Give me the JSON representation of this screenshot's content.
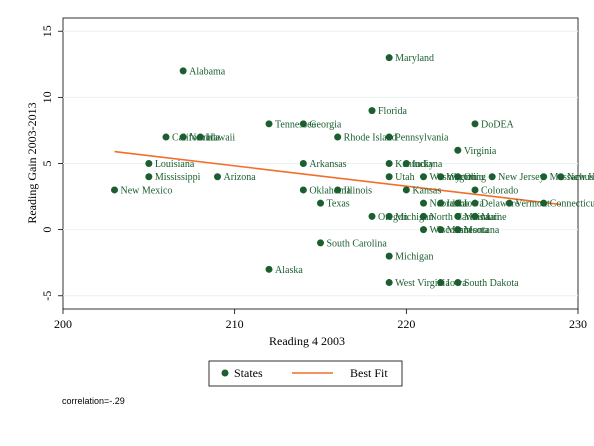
{
  "chart_data": {
    "type": "scatter",
    "xlabel": "Reading 4 2003",
    "ylabel": "Reading Gain 2003-2013",
    "xlim": [
      200,
      230
    ],
    "ylim": [
      -6,
      16
    ],
    "xticks": [
      200,
      210,
      220,
      230
    ],
    "yticks": [
      -5,
      0,
      5,
      10,
      15
    ],
    "grid": true,
    "legend_position": "bottom",
    "colors": {
      "points": "#1b5e2f",
      "fit": "#f26d2b"
    },
    "series": [
      {
        "name": "States",
        "points": [
          {
            "label": "Alabama",
            "x": 207,
            "y": 12
          },
          {
            "label": "Maryland",
            "x": 219,
            "y": 13
          },
          {
            "label": "Florida",
            "x": 218,
            "y": 9
          },
          {
            "label": "DoDEA",
            "x": 224,
            "y": 8
          },
          {
            "label": "Tennessee",
            "x": 212,
            "y": 8
          },
          {
            "label": "Georgia",
            "x": 214,
            "y": 8
          },
          {
            "label": "California",
            "x": 206,
            "y": 7
          },
          {
            "label": "Nevada",
            "x": 207,
            "y": 7
          },
          {
            "label": "Hawaii",
            "x": 208,
            "y": 7
          },
          {
            "label": "Rhode Island",
            "x": 216,
            "y": 7
          },
          {
            "label": "Pennsylvania",
            "x": 219,
            "y": 7
          },
          {
            "label": "Virginia",
            "x": 223,
            "y": 6
          },
          {
            "label": "Louisiana",
            "x": 205,
            "y": 5
          },
          {
            "label": "Arkansas",
            "x": 214,
            "y": 5
          },
          {
            "label": "Kentucky",
            "x": 219,
            "y": 5
          },
          {
            "label": "Indiana",
            "x": 220,
            "y": 5
          },
          {
            "label": "Mississippi",
            "x": 205,
            "y": 4
          },
          {
            "label": "Arizona",
            "x": 209,
            "y": 4
          },
          {
            "label": "Utah",
            "x": 219,
            "y": 4
          },
          {
            "label": "Washington",
            "x": 221,
            "y": 4
          },
          {
            "label": "Wyoming",
            "x": 222,
            "y": 4
          },
          {
            "label": "Ohio",
            "x": 223,
            "y": 4
          },
          {
            "label": "New Jersey",
            "x": 225,
            "y": 4
          },
          {
            "label": "Massachusetts",
            "x": 228,
            "y": 4
          },
          {
            "label": "New Hampshire",
            "x": 229,
            "y": 4
          },
          {
            "label": "New Mexico",
            "x": 203,
            "y": 3
          },
          {
            "label": "Oklahoma",
            "x": 214,
            "y": 3
          },
          {
            "label": "Illinois",
            "x": 216,
            "y": 3
          },
          {
            "label": "Kansas",
            "x": 220,
            "y": 3
          },
          {
            "label": "Colorado",
            "x": 224,
            "y": 3
          },
          {
            "label": "Texas",
            "x": 215,
            "y": 2
          },
          {
            "label": "Nebraska",
            "x": 221,
            "y": 2
          },
          {
            "label": "Idaho",
            "x": 222,
            "y": 2
          },
          {
            "label": "Iowa",
            "x": 223,
            "y": 2
          },
          {
            "label": "Delaware",
            "x": 224,
            "y": 2
          },
          {
            "label": "Vermont",
            "x": 226,
            "y": 2
          },
          {
            "label": "Connecticut",
            "x": 228,
            "y": 2
          },
          {
            "label": "Oregon",
            "x": 218,
            "y": 1
          },
          {
            "label": "Michigan",
            "x": 219,
            "y": 1
          },
          {
            "label": "North Carolina",
            "x": 221,
            "y": 1
          },
          {
            "label": "Missouri",
            "x": 223,
            "y": 1
          },
          {
            "label": "Maine",
            "x": 224,
            "y": 1
          },
          {
            "label": "Wisconsin",
            "x": 221,
            "y": 0
          },
          {
            "label": "Minnesota",
            "x": 222,
            "y": 0
          },
          {
            "label": "Montana",
            "x": 223,
            "y": 0
          },
          {
            "label": "South Carolina",
            "x": 215,
            "y": -1
          },
          {
            "label": "Michigan",
            "x": 219,
            "y": -2
          },
          {
            "label": "Alaska",
            "x": 212,
            "y": -3
          },
          {
            "label": "West Virginia",
            "x": 219,
            "y": -4
          },
          {
            "label": "Iowa",
            "x": 222,
            "y": -4
          },
          {
            "label": "South Dakota",
            "x": 223,
            "y": -4
          }
        ]
      },
      {
        "name": "Best Fit",
        "type": "line",
        "x": [
          203,
          229
        ],
        "y": [
          5.9,
          1.9
        ]
      }
    ]
  },
  "legend": {
    "points_label": "States",
    "fit_label": "Best Fit"
  },
  "note": "correlation=-.29"
}
